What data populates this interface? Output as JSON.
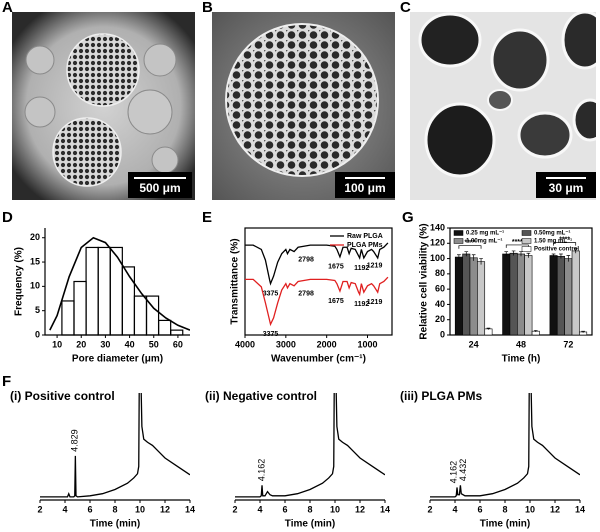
{
  "panel_labels": [
    "A",
    "B",
    "C",
    "D",
    "E",
    "G",
    "F"
  ],
  "scale_bars": [
    "500 μm",
    "100 μm",
    "30 μm"
  ],
  "chart_data": [
    {
      "type": "histogram",
      "x_label": "Pore diameter (μm)",
      "y_label": "Frequency (%)",
      "bins": [
        12,
        17,
        22,
        27,
        32,
        37,
        42,
        47,
        52,
        57,
        62
      ],
      "values": [
        7,
        11,
        18,
        18,
        18,
        14,
        8,
        8,
        3,
        1
      ],
      "color": "#000000",
      "fit": {
        "x": [
          7,
          10,
          15,
          20,
          25,
          30,
          35,
          40,
          45,
          50,
          55,
          60,
          65
        ],
        "values": [
          1,
          4,
          12,
          18,
          20,
          19,
          16,
          12,
          8.5,
          5.5,
          3.5,
          2,
          1
        ]
      },
      "xlim": [
        5,
        65
      ],
      "xticks": [
        10,
        20,
        30,
        40,
        50,
        60
      ],
      "ylim": [
        0,
        22
      ],
      "yticks": [
        0,
        5,
        10,
        15,
        20
      ]
    },
    {
      "type": "line",
      "x_label": "Wavenumber (cm⁻¹)",
      "y_label": "Transmittance (%)",
      "xlim": [
        4000,
        400
      ],
      "xticks": [
        4000,
        3000,
        2000,
        1000
      ],
      "ylim": [
        0,
        100
      ],
      "legend": "upper right",
      "series": [
        {
          "name": "Raw PLGA",
          "color": "#000000",
          "x": [
            4000,
            3800,
            3600,
            3500,
            3400,
            3375,
            3300,
            3200,
            3100,
            3000,
            2960,
            2900,
            2798,
            2700,
            2400,
            2000,
            1800,
            1750,
            1675,
            1600,
            1500,
            1450,
            1400,
            1300,
            1219,
            1192,
            1150,
            1090,
            1000,
            900,
            850,
            750,
            700,
            600,
            500
          ],
          "values": [
            84,
            84,
            80,
            70,
            52,
            48,
            55,
            68,
            76,
            80,
            76,
            80,
            78,
            82,
            84,
            84,
            83,
            80,
            73,
            82,
            82,
            76,
            81,
            80,
            74,
            72,
            80,
            72,
            78,
            80,
            78,
            72,
            80,
            82,
            86
          ],
          "peak_labels": [
            3375,
            2798,
            1675,
            1192,
            1219
          ]
        },
        {
          "name": "PLGA PMs",
          "color": "#e02020",
          "x": [
            4000,
            3800,
            3600,
            3500,
            3400,
            3375,
            3300,
            3200,
            3100,
            3000,
            2960,
            2900,
            2798,
            2700,
            2400,
            2000,
            1800,
            1750,
            1675,
            1600,
            1500,
            1450,
            1400,
            1300,
            1219,
            1192,
            1150,
            1090,
            1000,
            900,
            850,
            750,
            700,
            600,
            500
          ],
          "values": [
            52,
            52,
            45,
            30,
            14,
            10,
            16,
            30,
            42,
            48,
            44,
            48,
            46,
            50,
            52,
            52,
            51,
            48,
            41,
            50,
            50,
            44,
            49,
            48,
            40,
            38,
            48,
            40,
            46,
            48,
            46,
            40,
            48,
            50,
            54
          ],
          "peak_labels": [
            3375,
            2798,
            1675,
            1192,
            1219
          ]
        }
      ]
    },
    {
      "type": "bar",
      "x_label": "Time (h)",
      "y_label": "Relative cell viability (%)",
      "categories": [
        "24",
        "48",
        "72"
      ],
      "ylim": [
        0,
        140
      ],
      "yticks": [
        0,
        20,
        40,
        60,
        80,
        100,
        120,
        140
      ],
      "significance": [
        "****",
        "****",
        "****"
      ],
      "series": [
        {
          "name": "0.25 mg mL⁻¹",
          "color": "#111111",
          "values": [
            102,
            106,
            104
          ],
          "errors": [
            3,
            3,
            2
          ]
        },
        {
          "name": "0.50mg mL⁻¹",
          "color": "#555555",
          "values": [
            106,
            107,
            103
          ],
          "errors": [
            3,
            3,
            3
          ]
        },
        {
          "name": "1.00mg mL⁻¹",
          "color": "#8c8c8c",
          "values": [
            101,
            106,
            100
          ],
          "errors": [
            4,
            3,
            4
          ]
        },
        {
          "name": "1.50 mg mL⁻¹",
          "color": "#c8c8c8",
          "values": [
            96,
            104,
            110
          ],
          "errors": [
            4,
            3,
            3
          ]
        },
        {
          "name": "Positive control",
          "color": "#ffffff",
          "values": [
            8,
            5,
            4
          ],
          "errors": [
            1,
            1,
            1
          ]
        }
      ]
    },
    {
      "type": "line",
      "title": "(i) Positive control",
      "x_label": "Time (min)",
      "xlim": [
        2,
        14
      ],
      "xticks": [
        2,
        4,
        6,
        8,
        10,
        12,
        14
      ],
      "ylim": [
        0,
        100
      ],
      "series": [
        {
          "color": "#000000",
          "x": [
            2,
            3,
            4,
            4.2,
            4.3,
            4.4,
            4.7,
            4.78,
            4.829,
            4.88,
            5,
            6,
            7,
            8,
            9,
            9.5,
            9.8,
            9.9,
            9.95,
            10.05,
            10.15,
            10.3,
            10.6,
            11,
            11.5,
            12,
            13,
            14
          ],
          "values": [
            3,
            3,
            3,
            3,
            6,
            3,
            3,
            4,
            42,
            4,
            3,
            4,
            6,
            10,
            16,
            21,
            25,
            32,
            130,
            130,
            70,
            58,
            55,
            52,
            46,
            40,
            32,
            24
          ],
          "peak_labels": [
            4.829
          ]
        }
      ]
    },
    {
      "type": "line",
      "title": "(ii) Negative control",
      "x_label": "Time (min)",
      "xlim": [
        2,
        14
      ],
      "xticks": [
        2,
        4,
        6,
        8,
        10,
        12,
        14
      ],
      "ylim": [
        0,
        100
      ],
      "series": [
        {
          "color": "#000000",
          "x": [
            2,
            3,
            4,
            4.1,
            4.162,
            4.22,
            4.4,
            4.6,
            4.8,
            5,
            6,
            7,
            8,
            9,
            9.5,
            9.8,
            9.9,
            9.95,
            10.05,
            10.15,
            10.3,
            10.6,
            11,
            11.5,
            12,
            13,
            14
          ],
          "values": [
            3,
            3,
            3,
            4,
            14,
            4,
            4,
            8,
            5,
            4,
            4,
            6,
            10,
            16,
            21,
            25,
            32,
            130,
            130,
            70,
            58,
            55,
            52,
            46,
            40,
            32,
            24
          ],
          "peak_labels": [
            4.162
          ]
        }
      ]
    },
    {
      "type": "line",
      "title": "(iii) PLGA PMs",
      "x_label": "Time (min)",
      "xlim": [
        2,
        14
      ],
      "xticks": [
        2,
        4,
        6,
        8,
        10,
        12,
        14
      ],
      "ylim": [
        0,
        100
      ],
      "series": [
        {
          "color": "#000000",
          "x": [
            2,
            3,
            4,
            4.1,
            4.162,
            4.22,
            4.35,
            4.432,
            4.5,
            4.8,
            5,
            6,
            7,
            8,
            9,
            9.5,
            9.8,
            9.9,
            9.95,
            10.05,
            10.15,
            10.3,
            10.6,
            11,
            11.5,
            12,
            13,
            14
          ],
          "values": [
            3,
            3,
            3,
            4,
            12,
            5,
            5,
            14,
            6,
            4,
            4,
            4,
            6,
            10,
            16,
            21,
            25,
            32,
            130,
            130,
            70,
            58,
            55,
            52,
            46,
            40,
            32,
            24
          ],
          "peak_labels": [
            4.162,
            4.432
          ]
        }
      ]
    }
  ]
}
